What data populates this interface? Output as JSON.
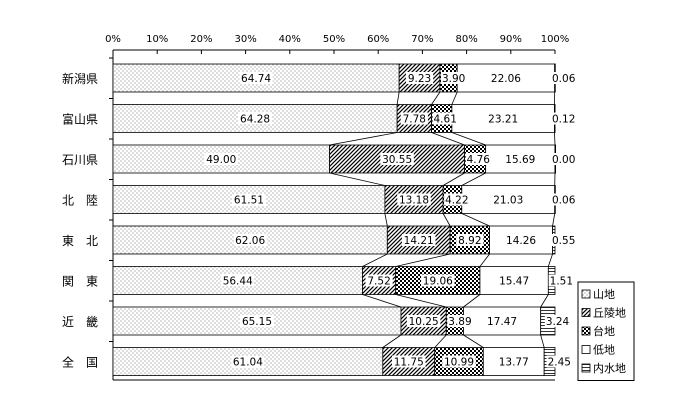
{
  "chart_data": {
    "type": "bar",
    "stacked": true,
    "percent": true,
    "orientation": "horizontal",
    "xlim": [
      0,
      100
    ],
    "x_ticks": [
      "0%",
      "10%",
      "20%",
      "30%",
      "40%",
      "50%",
      "60%",
      "70%",
      "80%",
      "90%",
      "100%"
    ],
    "categories": [
      "新潟県",
      "富山県",
      "石川県",
      "北　陸",
      "東　北",
      "関　東",
      "近　畿",
      "全　国"
    ],
    "series": [
      {
        "name": "山地",
        "values": [
          64.74,
          64.28,
          49.0,
          61.51,
          62.06,
          56.44,
          65.15,
          61.04
        ]
      },
      {
        "name": "丘陵地",
        "values": [
          9.23,
          7.78,
          30.55,
          13.18,
          14.21,
          7.52,
          10.25,
          11.75
        ]
      },
      {
        "name": "台地",
        "values": [
          3.9,
          4.61,
          4.76,
          4.22,
          8.92,
          19.06,
          3.89,
          10.99
        ]
      },
      {
        "name": "低地",
        "values": [
          22.06,
          23.21,
          15.69,
          21.03,
          14.26,
          15.47,
          17.47,
          13.77
        ]
      },
      {
        "name": "内水地",
        "values": [
          0.06,
          0.12,
          0.0,
          0.06,
          0.55,
          1.51,
          3.24,
          2.45
        ]
      }
    ],
    "data_labels": [
      [
        "64.74",
        "9.23",
        "3.90",
        "22.06",
        "0.06"
      ],
      [
        "64.28",
        "7.78",
        "4.61",
        "23.21",
        "0.12"
      ],
      [
        "49.00",
        "30.55",
        "4.76",
        "15.69",
        "0.00"
      ],
      [
        "61.51",
        "13.18",
        "4.22",
        "21.03",
        "0.06"
      ],
      [
        "62.06",
        "14.21",
        "8.92",
        "14.26",
        "0.55"
      ],
      [
        "56.44",
        "7.52",
        "19.06",
        "15.47",
        "1.51"
      ],
      [
        "65.15",
        "10.25",
        "3.89",
        "17.47",
        "3.24"
      ],
      [
        "61.04",
        "11.75",
        "10.99",
        "13.77",
        "2.45"
      ]
    ],
    "grid": false,
    "series_lines": true,
    "legend": {
      "placement": "bottom-right",
      "boxed": true
    },
    "colors": {
      "bar_fill": "#ffffff",
      "stroke": "#000000",
      "dots": "#888888"
    }
  }
}
